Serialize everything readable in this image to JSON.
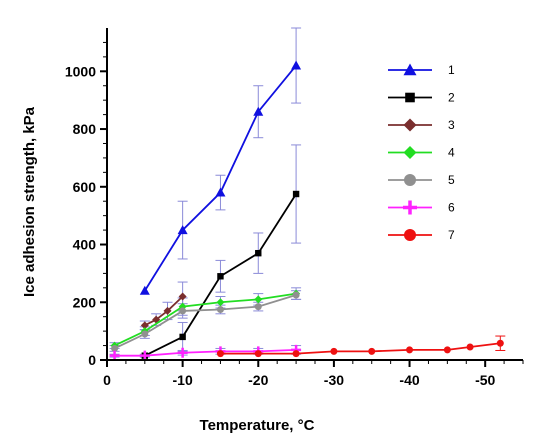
{
  "chart_data": {
    "type": "line",
    "title": "",
    "xlabel": "Temperature, °C",
    "ylabel": "Ice adhesion strength, kPa",
    "xlim": [
      0,
      -55
    ],
    "ylim": [
      0,
      1150
    ],
    "x_ticks": [
      0,
      -10,
      -20,
      -30,
      -40,
      -50
    ],
    "x_tick_labels": [
      "0",
      "-10",
      "-20",
      "-30",
      "-40",
      "-50"
    ],
    "y_ticks": [
      0,
      200,
      400,
      600,
      800,
      1000
    ],
    "y_tick_labels": [
      "0",
      "200",
      "400",
      "600",
      "800",
      "1000"
    ],
    "grid": false,
    "legend_position": "right",
    "series": [
      {
        "name": "1",
        "color": "#1010e0",
        "marker": "triangle",
        "x": [
          -5,
          -10,
          -15,
          -20,
          -25
        ],
        "y": [
          240,
          450,
          580,
          860,
          1020
        ],
        "err": [
          0,
          100,
          60,
          90,
          130
        ]
      },
      {
        "name": "2",
        "color": "#000000",
        "marker": "square",
        "x": [
          -5,
          -10,
          -15,
          -20,
          -25
        ],
        "y": [
          15,
          80,
          290,
          370,
          575
        ],
        "err": [
          0,
          50,
          55,
          70,
          170
        ]
      },
      {
        "name": "3",
        "color": "#7a2e2e",
        "marker": "diamond",
        "x": [
          -5,
          -6.5,
          -8,
          -10
        ],
        "y": [
          120,
          140,
          170,
          220
        ],
        "err": [
          15,
          20,
          30,
          50
        ]
      },
      {
        "name": "4",
        "color": "#22dd22",
        "marker": "diamond",
        "x": [
          -1,
          -5,
          -10,
          -15,
          -20,
          -25
        ],
        "y": [
          50,
          100,
          185,
          200,
          210,
          230
        ],
        "err": [
          10,
          15,
          30,
          20,
          20,
          20
        ]
      },
      {
        "name": "5",
        "color": "#909090",
        "marker": "circle",
        "x": [
          -1,
          -5,
          -10,
          -15,
          -20,
          -25
        ],
        "y": [
          40,
          90,
          170,
          175,
          185,
          225
        ],
        "err": [
          10,
          15,
          25,
          15,
          15,
          15
        ]
      },
      {
        "name": "6",
        "color": "#ff22ff",
        "marker": "plus",
        "x": [
          -1,
          -5,
          -10,
          -15,
          -20,
          -25
        ],
        "y": [
          15,
          15,
          25,
          30,
          30,
          35
        ],
        "err": [
          5,
          5,
          8,
          10,
          10,
          15
        ]
      },
      {
        "name": "7",
        "color": "#ee1111",
        "marker": "circle",
        "x": [
          -15,
          -20,
          -25,
          -30,
          -35,
          -40,
          -45,
          -48,
          -52
        ],
        "y": [
          22,
          22,
          22,
          30,
          30,
          35,
          35,
          45,
          58
        ],
        "err": [
          0,
          0,
          0,
          0,
          0,
          0,
          0,
          0,
          25
        ]
      }
    ]
  }
}
